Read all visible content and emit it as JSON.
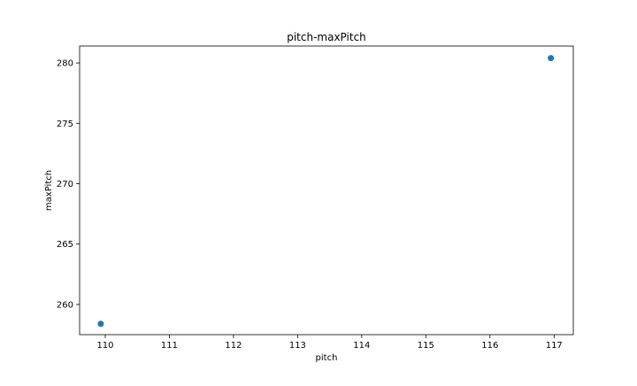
{
  "chart_data": {
    "type": "scatter",
    "title": "pitch-maxPitch",
    "xlabel": "pitch",
    "ylabel": "maxPitch",
    "xlim": [
      109.6,
      117.3
    ],
    "ylim": [
      257.5,
      281.4
    ],
    "xticks": [
      110,
      111,
      112,
      113,
      114,
      115,
      116,
      117
    ],
    "yticks": [
      260,
      265,
      270,
      275,
      280
    ],
    "grid": false,
    "series": [
      {
        "marker_color": "#1f77b4",
        "points": [
          {
            "x": 109.93,
            "y": 258.4
          },
          {
            "x": 116.95,
            "y": 280.4
          }
        ]
      }
    ]
  }
}
